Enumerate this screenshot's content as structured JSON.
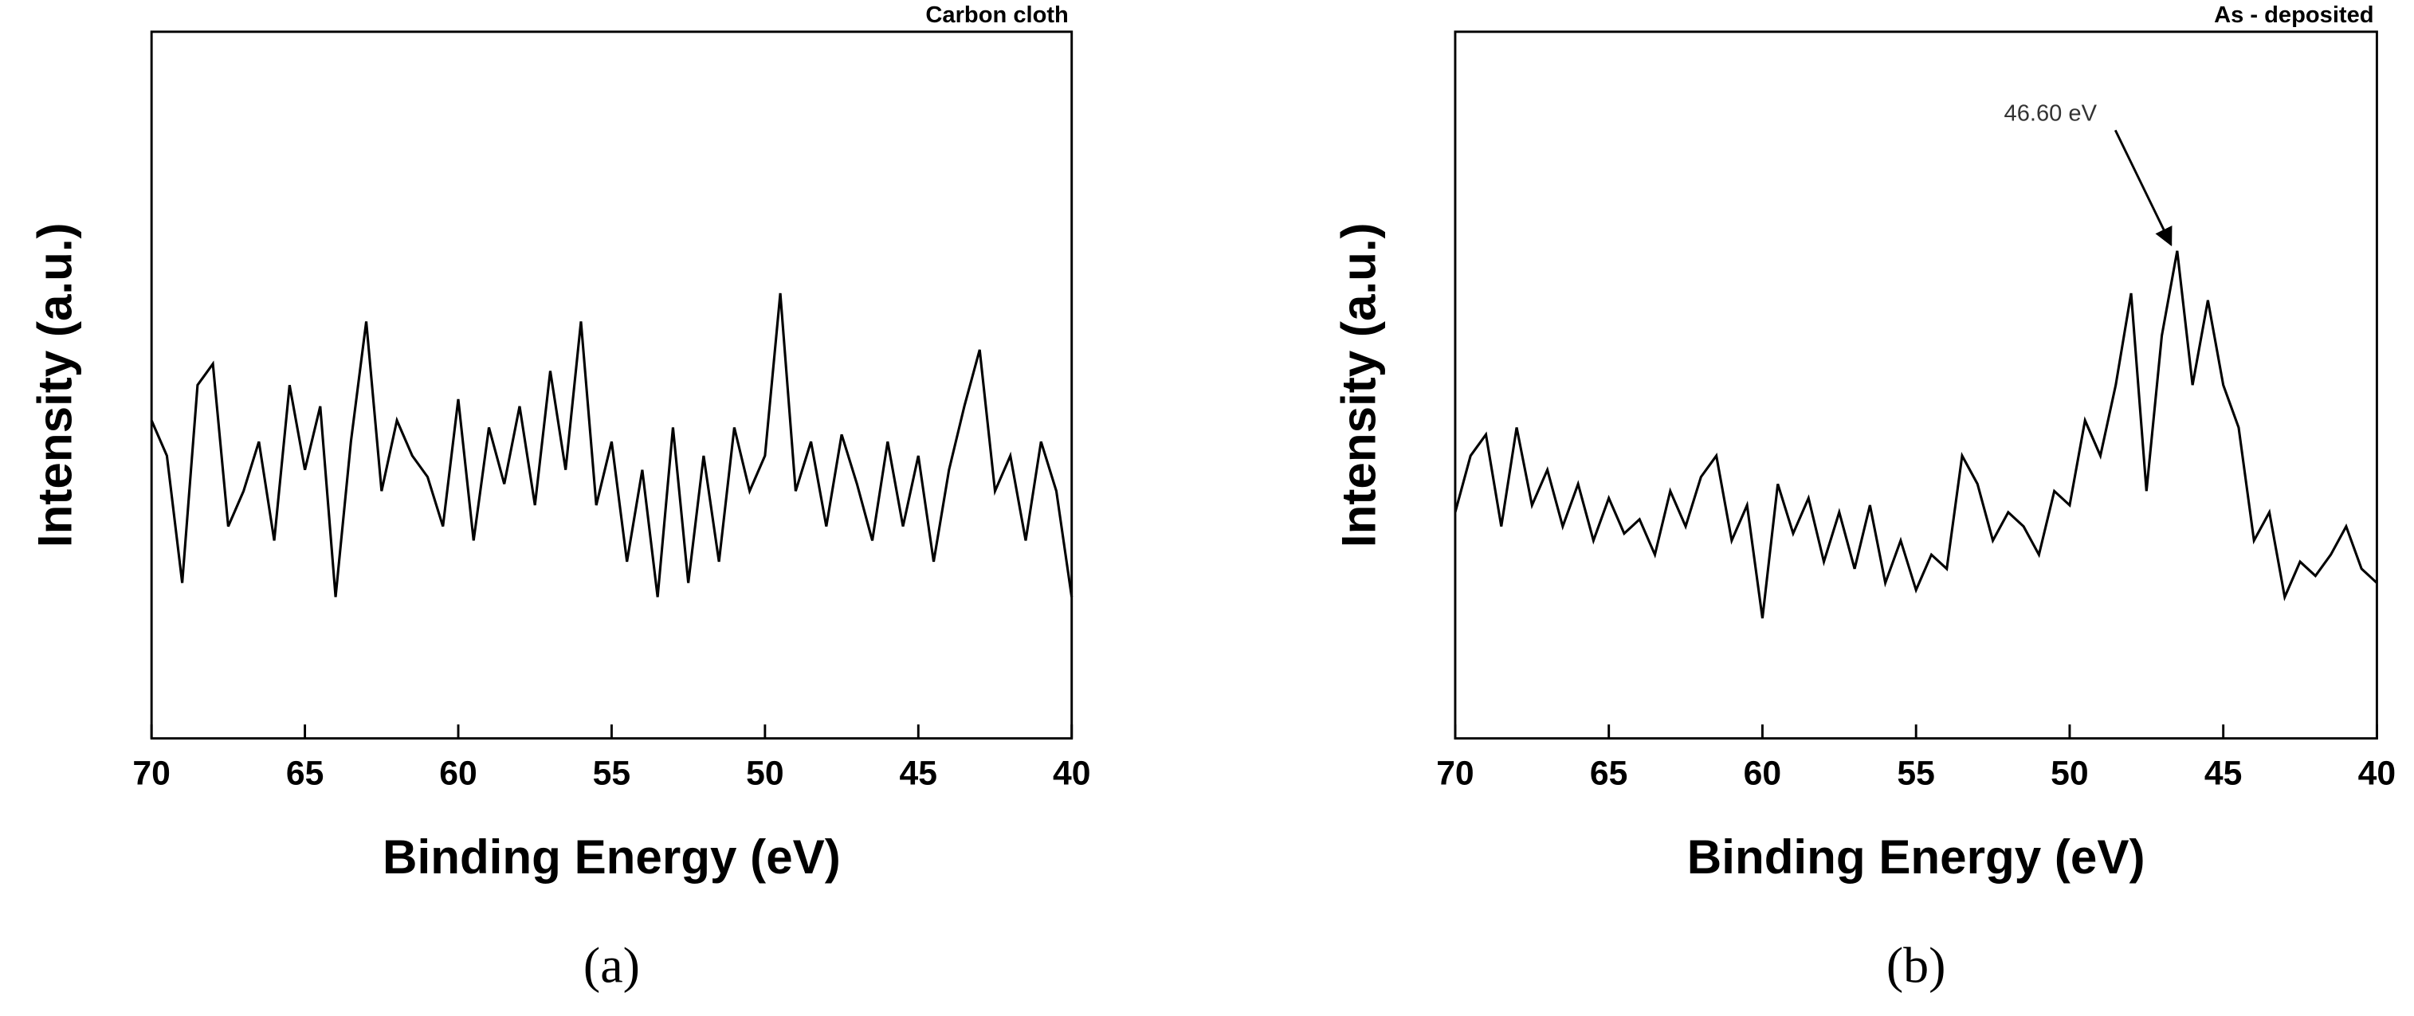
{
  "chart_data": [
    {
      "type": "line",
      "title": "Carbon cloth",
      "caption": "(a)",
      "xlabel": "Binding Energy (eV)",
      "ylabel": "Intensity (a.u.)",
      "xlim": [
        70,
        40
      ],
      "xticks": [
        70,
        65,
        60,
        55,
        50,
        45,
        40
      ],
      "ylim": [
        0,
        100
      ],
      "x": [
        70,
        69.5,
        69,
        68.5,
        68,
        67.5,
        67,
        66.5,
        66,
        65.5,
        65,
        64.5,
        64,
        63.5,
        63,
        62.5,
        62,
        61.5,
        61,
        60.5,
        60,
        59.5,
        59,
        58.5,
        58,
        57.5,
        57,
        56.5,
        56,
        55.5,
        55,
        54.5,
        54,
        53.5,
        53,
        52.5,
        52,
        51.5,
        51,
        50.5,
        50,
        49.5,
        49,
        48.5,
        48,
        47.5,
        47,
        46.5,
        46,
        45.5,
        45,
        44.5,
        44,
        43.5,
        43,
        42.5,
        42,
        41.5,
        41,
        40.5,
        40
      ],
      "series": [
        {
          "color": "#000000",
          "values": [
            45,
            40,
            22,
            50,
            53,
            30,
            35,
            42,
            28,
            50,
            38,
            47,
            20,
            42,
            59,
            35,
            45,
            40,
            37,
            30,
            48,
            28,
            44,
            36,
            47,
            33,
            52,
            38,
            59,
            33,
            42,
            25,
            38,
            20,
            44,
            22,
            40,
            25,
            44,
            35,
            40,
            63,
            35,
            42,
            30,
            43,
            36,
            28,
            42,
            30,
            40,
            25,
            38,
            47,
            55,
            35,
            40,
            28,
            42,
            35,
            20
          ]
        }
      ]
    },
    {
      "type": "line",
      "title": "As - deposited",
      "caption": "(b)",
      "xlabel": "Binding Energy (eV)",
      "ylabel": "Intensity (a.u.)",
      "xlim": [
        70,
        40
      ],
      "xticks": [
        70,
        65,
        60,
        55,
        50,
        45,
        40
      ],
      "ylim": [
        0,
        100
      ],
      "x": [
        70,
        69.5,
        69,
        68.5,
        68,
        67.5,
        67,
        66.5,
        66,
        65.5,
        65,
        64.5,
        64,
        63.5,
        63,
        62.5,
        62,
        61.5,
        61,
        60.5,
        60,
        59.5,
        59,
        58.5,
        58,
        57.5,
        57,
        56.5,
        56,
        55.5,
        55,
        54.5,
        54,
        53.5,
        53,
        52.5,
        52,
        51.5,
        51,
        50.5,
        50,
        49.5,
        49,
        48.5,
        48,
        47.5,
        47,
        46.5,
        46,
        45.5,
        45,
        44.5,
        44,
        43.5,
        43,
        42.5,
        42,
        41.5,
        41,
        40.5,
        40
      ],
      "series": [
        {
          "color": "#000000",
          "values": [
            32,
            40,
            43,
            30,
            44,
            33,
            38,
            30,
            36,
            28,
            34,
            29,
            31,
            26,
            35,
            30,
            37,
            40,
            28,
            33,
            17,
            36,
            29,
            34,
            25,
            32,
            24,
            33,
            22,
            28,
            21,
            26,
            24,
            40,
            36,
            28,
            32,
            30,
            26,
            35,
            33,
            45,
            40,
            50,
            63,
            35,
            57,
            69,
            50,
            62,
            50,
            44,
            28,
            32,
            20,
            25,
            23,
            26,
            30,
            24,
            22
          ]
        }
      ],
      "annotations": [
        {
          "text": "46.60 eV",
          "x": 46.6,
          "y": 69
        }
      ]
    }
  ]
}
